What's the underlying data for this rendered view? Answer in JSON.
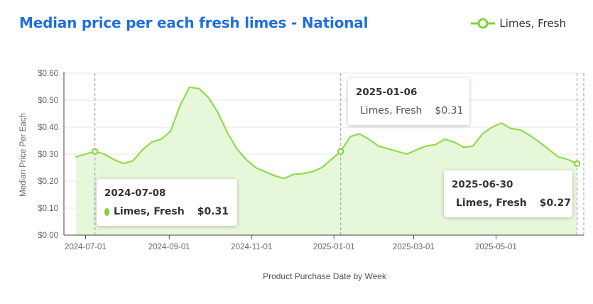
{
  "title": "Median price per each fresh limes - National",
  "legend": {
    "label": "Limes, Fresh",
    "color": "#7fd33a",
    "icon": "legend-line-circle-icon"
  },
  "colors": {
    "line": "#8fdc4a",
    "fill": "#e4f7d6",
    "title": "#1f6fe0",
    "marker": "#7fd33a"
  },
  "tooltips": [
    {
      "date": "2024-07-08",
      "series": "Limes, Fresh",
      "value": "$0.31"
    },
    {
      "date": "2025-01-06",
      "series": "Limes, Fresh",
      "value": "$0.31"
    },
    {
      "date": "2025-06-30",
      "series": "Limes, Fresh",
      "value": "$0.27"
    }
  ],
  "chart_data": {
    "type": "area",
    "title": "Median price per each fresh limes - National",
    "xlabel": "Product Purchase Date by Week",
    "ylabel": "Median Price Per Each",
    "ylim": [
      0,
      0.6
    ],
    "yticks": [
      "$0.00",
      "$0.10",
      "$0.20",
      "$0.30",
      "$0.40",
      "$0.50",
      "$0.60"
    ],
    "xticks": [
      "2024-07-01",
      "2024-09-01",
      "2024-11-01",
      "2025-01-01",
      "2025-03-01",
      "2025-05-01"
    ],
    "grid": true,
    "legend_position": "top-right",
    "series": [
      {
        "name": "Limes, Fresh",
        "x": [
          "2024-06-24",
          "2024-07-01",
          "2024-07-08",
          "2024-07-15",
          "2024-07-22",
          "2024-07-29",
          "2024-08-05",
          "2024-08-12",
          "2024-08-19",
          "2024-08-26",
          "2024-09-02",
          "2024-09-09",
          "2024-09-16",
          "2024-09-23",
          "2024-09-30",
          "2024-10-07",
          "2024-10-14",
          "2024-10-21",
          "2024-10-28",
          "2024-11-04",
          "2024-11-11",
          "2024-11-18",
          "2024-11-25",
          "2024-12-02",
          "2024-12-09",
          "2024-12-16",
          "2024-12-23",
          "2024-12-30",
          "2025-01-06",
          "2025-01-13",
          "2025-01-20",
          "2025-01-27",
          "2025-02-03",
          "2025-02-10",
          "2025-02-17",
          "2025-02-24",
          "2025-03-03",
          "2025-03-10",
          "2025-03-17",
          "2025-03-24",
          "2025-03-31",
          "2025-04-07",
          "2025-04-14",
          "2025-04-21",
          "2025-04-28",
          "2025-05-05",
          "2025-05-12",
          "2025-05-19",
          "2025-05-26",
          "2025-06-02",
          "2025-06-09",
          "2025-06-16",
          "2025-06-23",
          "2025-06-30"
        ],
        "values": [
          0.29,
          0.3,
          0.31,
          0.3,
          0.28,
          0.265,
          0.275,
          0.315,
          0.345,
          0.355,
          0.385,
          0.48,
          0.548,
          0.543,
          0.51,
          0.455,
          0.38,
          0.32,
          0.28,
          0.25,
          0.235,
          0.22,
          0.21,
          0.225,
          0.228,
          0.235,
          0.25,
          0.28,
          0.31,
          0.365,
          0.375,
          0.355,
          0.33,
          0.32,
          0.31,
          0.3,
          0.315,
          0.33,
          0.335,
          0.355,
          0.345,
          0.325,
          0.33,
          0.375,
          0.4,
          0.415,
          0.395,
          0.39,
          0.37,
          0.345,
          0.318,
          0.29,
          0.28,
          0.265
        ],
        "highlighted": [
          "2024-07-08",
          "2025-01-06",
          "2025-06-30"
        ]
      }
    ]
  }
}
